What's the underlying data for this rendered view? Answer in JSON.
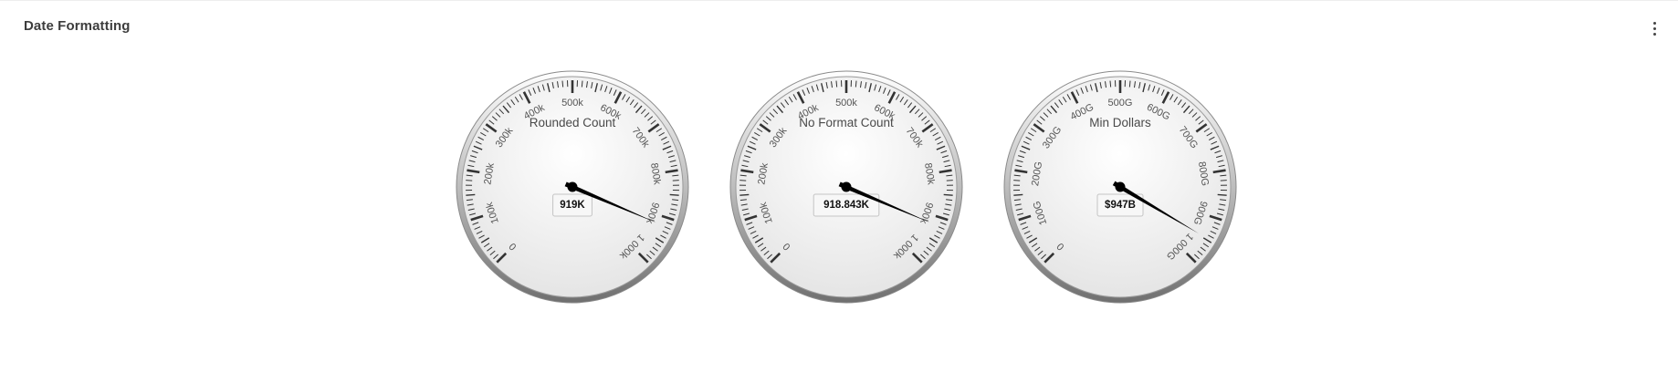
{
  "panel": {
    "title": "Date Formatting",
    "menu_icon": "more-vertical-icon"
  },
  "chart_data": [
    {
      "type": "gauge",
      "title": "Rounded Count",
      "value": 918843,
      "value_label": "919K",
      "min": 0,
      "max": 1000000,
      "ticks": [
        {
          "value": 0,
          "label": "0"
        },
        {
          "value": 100000,
          "label": "100k"
        },
        {
          "value": 200000,
          "label": "200k"
        },
        {
          "value": 300000,
          "label": "300k"
        },
        {
          "value": 400000,
          "label": "400k"
        },
        {
          "value": 500000,
          "label": "500k"
        },
        {
          "value": 600000,
          "label": "600k"
        },
        {
          "value": 700000,
          "label": "700k"
        },
        {
          "value": 800000,
          "label": "800k"
        },
        {
          "value": 900000,
          "label": "900k"
        },
        {
          "value": 1000000,
          "label": "1 000k"
        }
      ]
    },
    {
      "type": "gauge",
      "title": "No Format Count",
      "value": 918843,
      "value_label": "918.843K",
      "min": 0,
      "max": 1000000,
      "ticks": [
        {
          "value": 0,
          "label": "0"
        },
        {
          "value": 100000,
          "label": "100k"
        },
        {
          "value": 200000,
          "label": "200k"
        },
        {
          "value": 300000,
          "label": "300k"
        },
        {
          "value": 400000,
          "label": "400k"
        },
        {
          "value": 500000,
          "label": "500k"
        },
        {
          "value": 600000,
          "label": "600k"
        },
        {
          "value": 700000,
          "label": "700k"
        },
        {
          "value": 800000,
          "label": "800k"
        },
        {
          "value": 900000,
          "label": "900k"
        },
        {
          "value": 1000000,
          "label": "1 000k"
        }
      ]
    },
    {
      "type": "gauge",
      "title": "Min Dollars",
      "value": 947000000000,
      "value_label": "$947B",
      "min": 0,
      "max": 1000000000000,
      "ticks": [
        {
          "value": 0,
          "label": "0"
        },
        {
          "value": 100000000000,
          "label": "100G"
        },
        {
          "value": 200000000000,
          "label": "200G"
        },
        {
          "value": 300000000000,
          "label": "300G"
        },
        {
          "value": 400000000000,
          "label": "400G"
        },
        {
          "value": 500000000000,
          "label": "500G"
        },
        {
          "value": 600000000000,
          "label": "600G"
        },
        {
          "value": 700000000000,
          "label": "700G"
        },
        {
          "value": 800000000000,
          "label": "800G"
        },
        {
          "value": 900000000000,
          "label": "900G"
        },
        {
          "value": 1000000000000,
          "label": "1 000G"
        }
      ]
    }
  ]
}
